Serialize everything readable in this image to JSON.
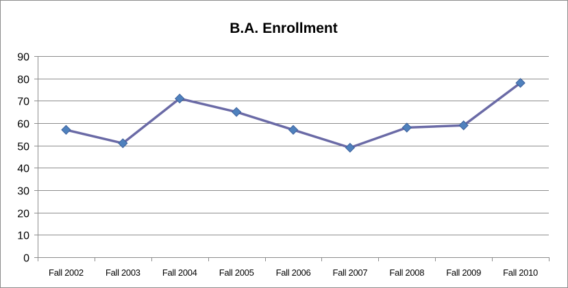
{
  "chart_data": {
    "type": "line",
    "title": "B.A. Enrollment",
    "xlabel": "",
    "ylabel": "",
    "categories": [
      "Fall 2002",
      "Fall 2003",
      "Fall 2004",
      "Fall 2005",
      "Fall 2006",
      "Fall 2007",
      "Fall 2008",
      "Fall 2009",
      "Fall 2010"
    ],
    "series": [
      {
        "values": [
          57,
          51,
          71,
          65,
          57,
          49,
          58,
          59,
          78
        ]
      }
    ],
    "ylim": [
      0,
      90
    ],
    "yticks": [
      0,
      10,
      20,
      30,
      40,
      50,
      60,
      70,
      80,
      90
    ],
    "grid": true,
    "legend": "none",
    "colors": {
      "line": "#6a6aa6",
      "marker": "#4f81bd",
      "marker_edge": "#3b5f9b",
      "grid": "#8c8c8c"
    }
  }
}
